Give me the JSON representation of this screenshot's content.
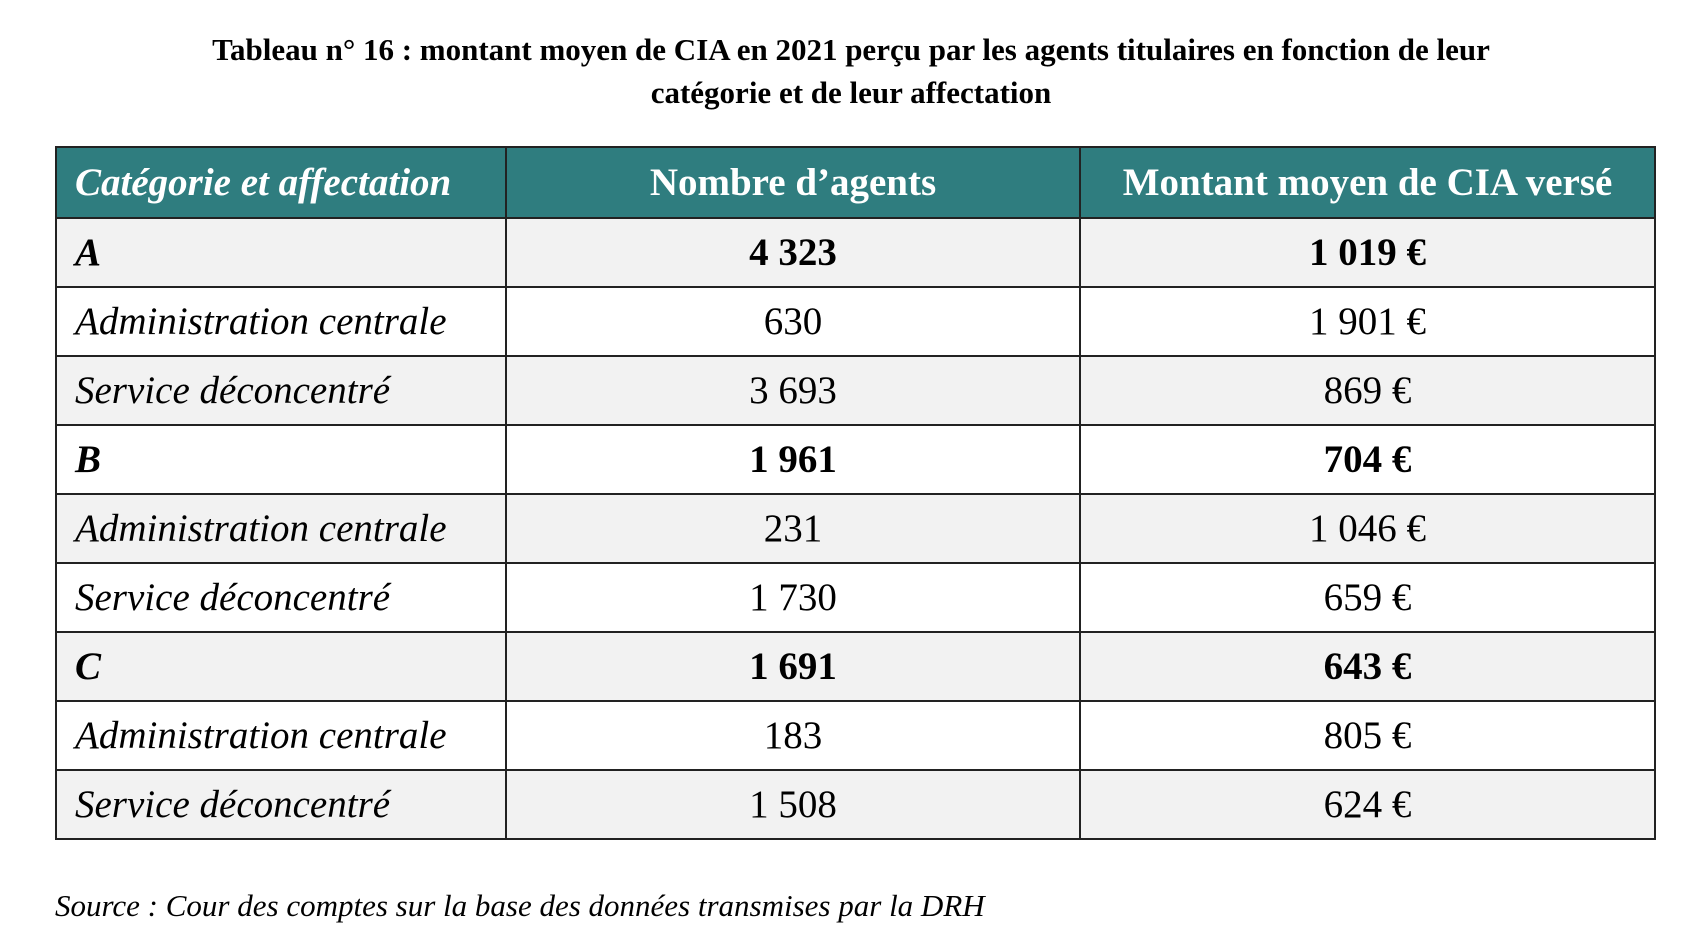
{
  "title": {
    "line1": "Tableau n° 16 :  montant moyen de CIA en 2021 perçu par les agents titulaires en fonction de leur",
    "line2": "catégorie et de leur affectation"
  },
  "colors": {
    "header_bg": "#2f7d7f",
    "header_text": "#ffffff",
    "row_shade": "#f2f2f2",
    "border": "#222222"
  },
  "table": {
    "headers": [
      "Catégorie et affectation",
      "Nombre d’agents",
      "Montant moyen de CIA versé"
    ],
    "rows": [
      {
        "label": "A",
        "agents": "4 323",
        "montant": "1 019 €"
      },
      {
        "label": "Administration centrale",
        "agents": "630",
        "montant": "1 901 €"
      },
      {
        "label": "Service déconcentré",
        "agents": "3 693",
        "montant": "869 €"
      },
      {
        "label": "B",
        "agents": "1 961",
        "montant": "704 €"
      },
      {
        "label": "Administration centrale",
        "agents": "231",
        "montant": "1 046 €"
      },
      {
        "label": "Service déconcentré",
        "agents": "1 730",
        "montant": "659 €"
      },
      {
        "label": "C",
        "agents": "1 691",
        "montant": "643 €"
      },
      {
        "label": "Administration centrale",
        "agents": "183",
        "montant": "805 €"
      },
      {
        "label": "Service déconcentré",
        "agents": "1 508",
        "montant": "624 €"
      }
    ]
  },
  "source": "Source : Cour des comptes sur la base des données transmises par la DRH"
}
